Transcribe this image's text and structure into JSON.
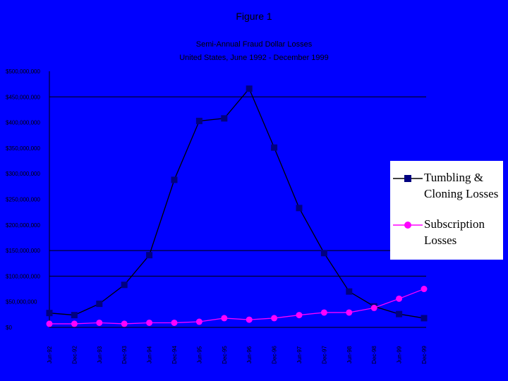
{
  "figure_title": "Figure 1",
  "chart_data": {
    "type": "line",
    "title": "Semi-Annual Fraud Dollar Losses",
    "subtitle": "United States, June 1992 - December 1999",
    "xlabel": "",
    "ylabel": "",
    "categories": [
      "Jun-92",
      "Dec-92",
      "Jun-93",
      "Dec-93",
      "Jun-94",
      "Dec-94",
      "Jun-95",
      "Dec-95",
      "Jun-96",
      "Dec-96",
      "Jun-97",
      "Dec-97",
      "Jun-98",
      "Dec-98",
      "Jun-99",
      "Dec-99"
    ],
    "series": [
      {
        "name": "Tumbling & Cloning Losses",
        "color": "#000080",
        "marker": "square",
        "values": [
          28000000,
          24000000,
          46000000,
          83000000,
          141000000,
          288000000,
          403000000,
          408000000,
          466000000,
          351000000,
          233000000,
          145000000,
          70000000,
          41000000,
          26000000,
          18000000
        ]
      },
      {
        "name": "Subscription Losses",
        "color": "#ff00ff",
        "marker": "circle",
        "values": [
          7000000,
          7000000,
          9000000,
          7000000,
          9000000,
          9000000,
          11000000,
          18000000,
          15000000,
          18000000,
          24000000,
          29000000,
          29000000,
          38000000,
          56000000,
          75000000
        ]
      }
    ],
    "ylim": [
      0,
      500000000
    ],
    "y_ticks": [
      "$0",
      "$50,000,000",
      "$100,000,000",
      "$150,000,000",
      "$200,000,000",
      "$250,000,000",
      "$300,000,000",
      "$350,000,000",
      "$400,000,000",
      "$450,000,000",
      "$500,000,000"
    ],
    "gridlines_at": [
      150000000,
      100000000,
      450000000
    ],
    "grid": "partial horizontal",
    "legend_position": "right",
    "line_color": "#000000"
  },
  "legend": {
    "items": [
      {
        "label": "Tumbling & Cloning Losses",
        "color": "#000080",
        "marker": "square"
      },
      {
        "label": "Subscription Losses",
        "color": "#ff00ff",
        "marker": "circle"
      }
    ]
  }
}
